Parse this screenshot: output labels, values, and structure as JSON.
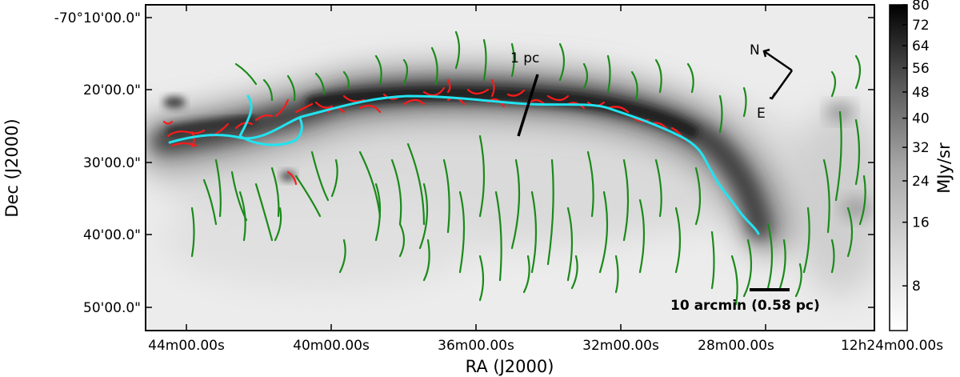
{
  "axes": {
    "xlabel": "RA (J2000)",
    "ylabel": "Dec (J2000)",
    "x_ticks": [
      "44m00.00s",
      "40m00.00s",
      "36m00.00s",
      "32m00.00s",
      "28m00.00s",
      "12h24m00.00s"
    ],
    "y_ticks": [
      "-70°10'00.0\"",
      "20'00.0\"",
      "30'00.0\"",
      "40'00.0\"",
      "50'00.0\""
    ]
  },
  "colorbar": {
    "label": "MJy/sr",
    "ticks": [
      "80",
      "72",
      "64",
      "56",
      "48",
      "40",
      "32",
      "24",
      "16",
      "8"
    ],
    "tick_values": [
      80,
      72,
      64,
      56,
      48,
      40,
      32,
      24,
      16,
      8
    ],
    "range": [
      6,
      80
    ],
    "scale": "log-like",
    "colormap": "gray_r"
  },
  "annotations": {
    "pc_label": "1 pc",
    "north_label": "N",
    "east_label": "E",
    "scalebar_label": "10 arcmin (0.58 pc)"
  },
  "colors": {
    "filament_spine": "#22e3f0",
    "dense_filaments": "#ff1a1a",
    "striations": "#1a8a1a",
    "cloud_dark": "#2b2b2b",
    "background": "#ebebeb"
  }
}
